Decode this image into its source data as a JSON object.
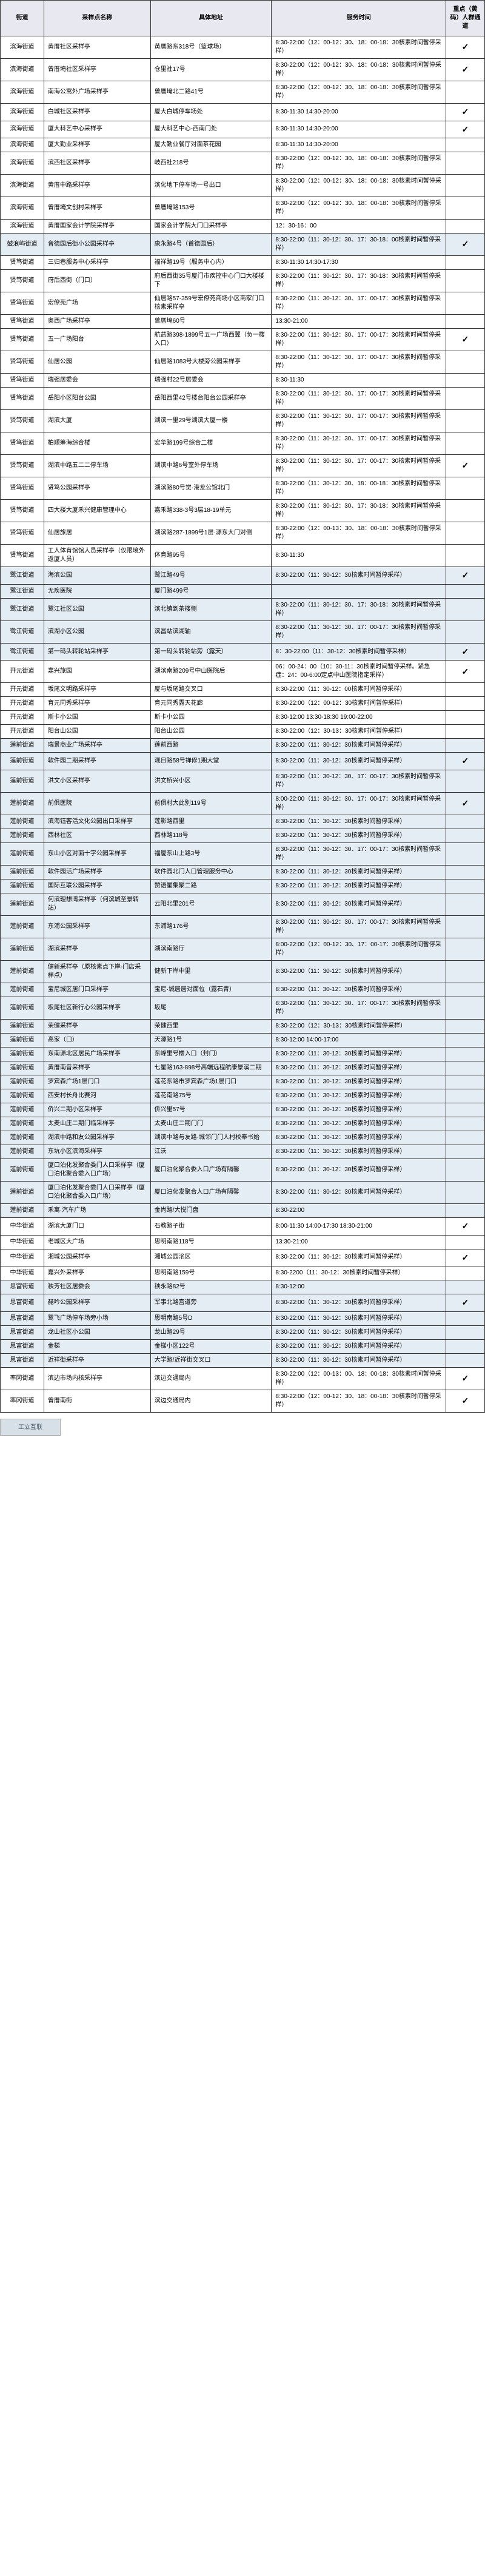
{
  "headers": [
    "街道",
    "采样点名称",
    "具体地址",
    "服务时间",
    "重点（黄码）人群通道"
  ],
  "footer_caption": "工立互联",
  "colors": {
    "header_bg": "#e8e8f0",
    "band_bg": "#e4ecf4",
    "border": "#333333",
    "text": "#000000"
  },
  "rows": [
    {
      "b": 0,
      "s": "滨海街道",
      "n": "黄厝社区采样亭",
      "a": "黄厝路东318号（篮球场）",
      "t": "8:30-22:00（12：00-12：30、18：00-18：30核素时间暂停采样）",
      "f": "✓"
    },
    {
      "b": 0,
      "s": "滨海街道",
      "n": "曾厝埯社区采样亭",
      "a": "仓里社17号",
      "t": "8:30-22:00（12：00-12：30、18：00-18：30核素时间暂停采样）",
      "f": "✓"
    },
    {
      "b": 0,
      "s": "滨海街道",
      "n": "南海公寓外广场采样亭",
      "a": "曾厝埯北二路41号",
      "t": "8:30-22:00（12：00-12：30、18：00-18：30核素时间暂停采样）",
      "f": ""
    },
    {
      "b": 0,
      "s": "滨海街道",
      "n": "白城社区采样亭",
      "a": "厦大白城停车场处",
      "t": "8:30-11:30 14:30-20:00",
      "f": "✓"
    },
    {
      "b": 0,
      "s": "滨海街道",
      "n": "厦大科艺中心采样亭",
      "a": "厦大科艺中心-西南门处",
      "t": "8:30-11:30 14:30-20:00",
      "f": "✓"
    },
    {
      "b": 0,
      "s": "滨海街道",
      "n": "厦大勤业采样亭",
      "a": "厦大勤业餐厅对面茶花园",
      "t": "8:30-11:30 14:30-20:00",
      "f": ""
    },
    {
      "b": 0,
      "s": "滨海街道",
      "n": "滨西社区采样亭",
      "a": "岐西社218号",
      "t": "8:30-22:00（12：00-12：30、18：00-18：30核素时间暂停采样）",
      "f": ""
    },
    {
      "b": 0,
      "s": "滨海街道",
      "n": "黄厝中路采样亭",
      "a": "滨化地下停车场一号出口",
      "t": "8:30-22:00（12：00-12：30、18：00-18：30核素时间暂停采样）",
      "f": ""
    },
    {
      "b": 0,
      "s": "滨海街道",
      "n": "曾厝埯文创村采样亭",
      "a": "曾厝埯路153号",
      "t": "8:30-22:00（12：00-12：30、18：00-18：30核素时间暂停采样）",
      "f": ""
    },
    {
      "b": 0,
      "s": "滨海街道",
      "n": "黄厝国家会计学院采样亭",
      "a": "国家会计学院大门口采样亭",
      "t": "12：30-16：00",
      "f": ""
    },
    {
      "b": 1,
      "s": "鼓浪屿街道",
      "n": "音德园后街小公园采样亭",
      "a": "康永路4号（首德园后）",
      "t": "8:30-22:00（11：30-12：30、17：30-18：00核素时间暂停采样）",
      "f": "✓"
    },
    {
      "b": 0,
      "s": "贤笃街道",
      "n": "三归巷服务中心采样亭",
      "a": "福祥路19号（服务中心内）",
      "t": "8:30-11:30 14:30-17:30",
      "f": ""
    },
    {
      "b": 0,
      "s": "贤笃街道",
      "n": "府后西街（门口）",
      "a": "府后西街35号厦门市疾控中心门口大楼楼下",
      "t": "8:30-22:00（11：30-12：30、17：30-18：30核素时间暂停采样）",
      "f": ""
    },
    {
      "b": 0,
      "s": "贤笃街道",
      "n": "宏僚苑广场",
      "a": "仙居路57-359号宏僚苑商场小区商家门口核素采样亭",
      "t": "8:30-22:00（11：30-12：30、17：00-17：30核素时间暂停采样）",
      "f": ""
    },
    {
      "b": 0,
      "s": "贤笃街道",
      "n": "奥西广场采样亭",
      "a": "曾厝埯60号",
      "t": "13:30-21:00",
      "f": ""
    },
    {
      "b": 0,
      "s": "贤笃街道",
      "n": "五一广场阳台",
      "a": "航益路398-1899号五一广场西翼（负一楼入口）",
      "t": "8:30-22:00（11：30-12：30、17：00-17：30核素时间暂停采样）",
      "f": "✓"
    },
    {
      "b": 0,
      "s": "贤笃街道",
      "n": "仙居公园",
      "a": "仙居路1083号大楼旁公园采样亭",
      "t": "8:30-22:00（11：30-12：30、17：00-17：30核素时间暂停采样）",
      "f": ""
    },
    {
      "b": 0,
      "s": "贤笃街道",
      "n": "瑞强居委会",
      "a": "瑞强村22号居委会",
      "t": "8:30-11:30",
      "f": ""
    },
    {
      "b": 0,
      "s": "贤笃街道",
      "n": "岳阳小区阳台公园",
      "a": "岳阳西里42号楼台阳台公园采样亭",
      "t": "8:30-22:00（11：30-12：30、17：00-17：30核素时间暂停采样）",
      "f": ""
    },
    {
      "b": 0,
      "s": "贤笃街道",
      "n": "湖滨大厦",
      "a": "湖滨一里29号湖滨大厦一楼",
      "t": "8:30-22:00（11：30-12：30、17：00-17：30核素时间暂停采样）",
      "f": ""
    },
    {
      "b": 0,
      "s": "贤笃街道",
      "n": "柏顺筹海综合楼",
      "a": "宏华路199号综合二楼",
      "t": "8:30-22:00（11：30-12：30、17：00-17：30核素时间暂停采样）",
      "f": ""
    },
    {
      "b": 0,
      "s": "贤笃街道",
      "n": "湖滨中路五二二停车场",
      "a": "湖滨中路6号室外停车场",
      "t": "8:30-22:00（11：30-12：30、17：00-17：30核素时间暂停采样）",
      "f": "✓"
    },
    {
      "b": 0,
      "s": "贤笃街道",
      "n": "贤笃公园采样亭",
      "a": "湖滨路80号觉·港龙公馆北门",
      "t": "8:30-22:00（11：30-12：30、18：00-18：30核素时间暂停采样）",
      "f": ""
    },
    {
      "b": 0,
      "s": "贤笃街道",
      "n": "四大楼大厦禾兴健康管理中心",
      "a": "嘉禾路338-3号3层18-19单元",
      "t": "8:30-22:00（11：30-12：30、17：30-18：30核素时间暂停采样）",
      "f": ""
    },
    {
      "b": 0,
      "s": "贤笃街道",
      "n": "仙居旅居",
      "a": "湖滨路287-1899号1层·源东大门对侧",
      "t": "8:30-22:00（12：00-13：30、18：00-18：30核素时间暂停采样）",
      "f": ""
    },
    {
      "b": 0,
      "s": "贤笃街道",
      "n": "工人体育馆馆人员采样亭（仅限境外返厦人员）",
      "a": "体育路95号",
      "t": "8:30-11:30",
      "f": ""
    },
    {
      "b": 1,
      "s": "鹭江街道",
      "n": "海滨公园",
      "a": "鹭江路49号",
      "t": "8:30-22:00（11：30-12：30核素时间暂停采样）",
      "f": "✓"
    },
    {
      "b": 1,
      "s": "鹭江街道",
      "n": "无疾医院",
      "a": "厦门路499号",
      "t": "",
      "f": ""
    },
    {
      "b": 1,
      "s": "鹭江街道",
      "n": "鹭江社区公园",
      "a": "滨北镇到茶楼侧",
      "t": "8:30-22:00（11：30-12：30、17：30-18：30核素时间暂停采样）",
      "f": ""
    },
    {
      "b": 1,
      "s": "鹭江街道",
      "n": "滨湖小区公园",
      "a": "滨昌站滨湖轴",
      "t": "8:30-22:00（11：30-12：30、17：00-17：30核素时间暂停采样）",
      "f": ""
    },
    {
      "b": 1,
      "s": "鹭江街道",
      "n": "第一码头转轮站采样亭",
      "a": "第一码头转轮站旁（露天）",
      "t": "8：30-22:00（11：30-12：30核素时间暂停采样）",
      "f": "✓"
    },
    {
      "b": 0,
      "s": "开元街道",
      "n": "嘉兴旅园",
      "a": "湖滨南路209号中山医院后",
      "t": "06：00-24：00（10：30-11：30核素时间暂停采样。紧急症：24：00-6:00定点中山医院指定采样）",
      "f": "✓"
    },
    {
      "b": 0,
      "s": "开元街道",
      "n": "坂尾文明路采样亭",
      "a": "厦与坂尾路交叉口",
      "t": "8:30-22:00（11：30-12：00核素时间暂停采样）",
      "f": ""
    },
    {
      "b": 0,
      "s": "开元街道",
      "n": "育元同秀采样亭",
      "a": "育元同秀露天花廊",
      "t": "8:30-22:00（12：00-12：30核素时间暂停采样）",
      "f": ""
    },
    {
      "b": 0,
      "s": "开元街道",
      "n": "斯卡小公园",
      "a": "斯卡小公园",
      "t": "8:30-12:00 13:30-18:30 19:00-22:00",
      "f": ""
    },
    {
      "b": 0,
      "s": "开元街道",
      "n": "阳台山公园",
      "a": "阳台山公园",
      "t": "8:30-22:00（12：30-13：30核素时间暂停采样）",
      "f": ""
    },
    {
      "b": 1,
      "s": "莲前街道",
      "n": "瑞景商业广场采样亭",
      "a": "莲前西路",
      "t": "8:30-22:00（11：30-12：30核素时间暂停采样）",
      "f": ""
    },
    {
      "b": 1,
      "s": "莲前街道",
      "n": "软件园二期采样亭",
      "a": "观日路58号禅修1期大堂",
      "t": "8:30-22:00（11：30-12：30核素时间暂停采样）",
      "f": "✓"
    },
    {
      "b": 1,
      "s": "莲前街道",
      "n": "洪文小区采样亭",
      "a": "洪文桥兴小区",
      "t": "8:30-22:00（11：30-12：30、17：00-17：30核素时间暂停采样）",
      "f": ""
    },
    {
      "b": 1,
      "s": "莲前街道",
      "n": "前俱医院",
      "a": "前俱村大此别119号",
      "t": "8:00-22:00（11：30-12：30、17：00-17：30核素时间暂停采样）",
      "f": "✓"
    },
    {
      "b": 1,
      "s": "莲前街道",
      "n": "滨海钰客活文化公园出口采样亭",
      "a": "莲影路西里",
      "t": "8:30-22:00（11：30-12：30核素时间暂停采样）",
      "f": ""
    },
    {
      "b": 1,
      "s": "莲前街道",
      "n": "西林社区",
      "a": "西林路118号",
      "t": "8:30-22:00（11：30-12：30核素时间暂停采样）",
      "f": ""
    },
    {
      "b": 1,
      "s": "莲前街道",
      "n": "东山小区对面十字公园采样亭",
      "a": "福厦东山上路3号",
      "t": "8:30-22:00（11：30-12：30、17：00-17：30核素时间暂停采样）",
      "f": ""
    },
    {
      "b": 1,
      "s": "莲前街道",
      "n": "软件园活广场采样亭",
      "a": "软件园北门人口管理服务中心",
      "t": "8:30-22:00（11：30-12：30核素时间暂停采样）",
      "f": ""
    },
    {
      "b": 1,
      "s": "莲前街道",
      "n": "国际互联公园采样亭",
      "a": "赞语星集聚二路",
      "t": "8:30-22:00（11：30-12：30核素时间暂停采样）",
      "f": ""
    },
    {
      "b": 1,
      "s": "莲前街道",
      "n": "何滨理想湾采样亭（何滨城至景转站）",
      "a": "云阳北里201号",
      "t": "8:30-22:00（11：30-12：30核素时间暂停采样）",
      "f": ""
    },
    {
      "b": 1,
      "s": "莲前街道",
      "n": "东浦公园采样亭",
      "a": "东浦路176号",
      "t": "8:30-22:00（11：30-12：30、17：00-17：30核素时间暂停采样）",
      "f": ""
    },
    {
      "b": 1,
      "s": "莲前街道",
      "n": "湖滨采样亭",
      "a": "湖滨南路厅",
      "t": "8:00-22:00（12：00-12：30、17：00-17：30核素时间暂停采样）",
      "f": ""
    },
    {
      "b": 1,
      "s": "莲前街道",
      "n": "健新采样亭（原核素点下岸-门店采样点）",
      "a": "健新下岸中里",
      "t": "8:30-22:00（11：30-12：30核素时间暂停采样）",
      "f": ""
    },
    {
      "b": 1,
      "s": "莲前街道",
      "n": "宝尼城区居门口采样亭",
      "a": "宝尼·城居居对面位（露石青）",
      "t": "8:30-22:00（11：30-12：30核素时间暂停采样）",
      "f": ""
    },
    {
      "b": 1,
      "s": "莲前街道",
      "n": "坂尾社区新行心公园采样亭",
      "a": "坂尾",
      "t": "8:30-22:00（11：30-12：30、17：00-17：30核素时间暂停采样）",
      "f": ""
    },
    {
      "b": 1,
      "s": "莲前街道",
      "n": "荣健采样亭",
      "a": "荣健西里",
      "t": "8:30-22:00（12：30-13：30核素时间暂停采样）",
      "f": ""
    },
    {
      "b": 1,
      "s": "莲前街道",
      "n": "高家（口）",
      "a": "天源路1号",
      "t": "8:30-12:00 14:00-17:00",
      "f": ""
    },
    {
      "b": 1,
      "s": "莲前街道",
      "n": "东南源北区居民广场采样亭",
      "a": "东峰里号楼入口（封门）",
      "t": "8:30-22:00（11：30-12：30核素时间暂停采样）",
      "f": ""
    },
    {
      "b": 1,
      "s": "莲前街道",
      "n": "黄厝南音采样亭",
      "a": "七星路163-898号高端远程航康景溪二期",
      "t": "8:30-22:00（11：30-12：30核素时间暂停采样）",
      "f": ""
    },
    {
      "b": 1,
      "s": "莲前街道",
      "n": "罗宾森广场1层门口",
      "a": "莲花东路市罗宾森广场1层门口",
      "t": "8:30-22:00（11：30-12：30核素时间暂停采样）",
      "f": ""
    },
    {
      "b": 1,
      "s": "莲前街道",
      "n": "西安村长舟比赛河",
      "a": "莲花南路75号",
      "t": "8:30-22:00（11：30-12：30核素时间暂停采样）",
      "f": ""
    },
    {
      "b": 1,
      "s": "莲前街道",
      "n": "侨兴二期小区采样亭",
      "a": "侨兴里57号",
      "t": "8:30-22:00（11：30-12：30核素时间暂停采样）",
      "f": ""
    },
    {
      "b": 1,
      "s": "莲前街道",
      "n": "太麦山庄二期门临采样亭",
      "a": "太麦山庄二期门门",
      "t": "8:30-22:00（11：30-12：30核素时间暂停采样）",
      "f": ""
    },
    {
      "b": 1,
      "s": "莲前街道",
      "n": "湖滨中路和友公园采样亭",
      "a": "湖滨中路与友路·城邻门门人村校奉书始",
      "t": "8:30-22:00（11：30-12：30核素时间暂停采样）",
      "f": ""
    },
    {
      "b": 1,
      "s": "莲前街道",
      "n": "东坑小区滨海采样亭",
      "a": "江沃",
      "t": "8:30-22:00（11：30-12：30核素时间暂停采样）",
      "f": ""
    },
    {
      "b": 1,
      "s": "莲前街道",
      "n": "厦口泊化发聚合委门人口采样亭（厦口泊化聚合委入口广场）",
      "a": "厦口泊化聚合委入口广场有隔馨",
      "t": "8:30-22:00（11：30-12：30核素时间暂停采样）",
      "f": ""
    },
    {
      "b": 1,
      "s": "莲前街道",
      "n": "厦口泊化发聚合委门人口采样亭（厦口泊化聚合委入口广场）",
      "a": "厦口泊化发聚合人口广场有隔馨",
      "t": "8:30-22:00（11：30-12：30核素时间暂停采样）",
      "f": ""
    },
    {
      "b": 1,
      "s": "莲前街道",
      "n": "禾寓·汽车广场",
      "a": "金尚路/大悦门盘",
      "t": "8:30-22:00",
      "f": ""
    },
    {
      "b": 0,
      "s": "中华街道",
      "n": "湖滨大厦门口",
      "a": "石教路子街",
      "t": "8:00-11:30 14:00-17:30 18:30-21:00",
      "f": "✓"
    },
    {
      "b": 0,
      "s": "中华街道",
      "n": "老城区大广场",
      "a": "思明南路118号",
      "t": "13:30-21:00",
      "f": ""
    },
    {
      "b": 0,
      "s": "中华街道",
      "n": "湘城公园采样亭",
      "a": "湘城公园洺区",
      "t": "8:30-22:00（11：30-12：30核素时间暂停采样）",
      "f": "✓"
    },
    {
      "b": 0,
      "s": "中华街道",
      "n": "嘉兴外采样亭",
      "a": "思明南路159号",
      "t": "8:30-2200（11：30-12：30核素时间暂停采样）",
      "f": ""
    },
    {
      "b": 1,
      "s": "思富街道",
      "n": "秧芳社区居委会",
      "a": "秧永路82号",
      "t": "8:30-12:00",
      "f": ""
    },
    {
      "b": 1,
      "s": "思富街道",
      "n": "琵吟公园采样亭",
      "a": "军事北路宫道旁",
      "t": "8:30-22:00（11：30-12：30核素时间暂停采样）",
      "f": "✓"
    },
    {
      "b": 1,
      "s": "思富街道",
      "n": "鹭飞广场停车场旁小场",
      "a": "思明南路5号D",
      "t": "8:30-22:00（11：30-12：30核素时间暂停采样）",
      "f": ""
    },
    {
      "b": 1,
      "s": "思富街道",
      "n": "龙山社区小公园",
      "a": "龙山路29号",
      "t": "8:30-22:00（11：30-12：30核素时间暂停采样）",
      "f": ""
    },
    {
      "b": 1,
      "s": "思富街道",
      "n": "金梯",
      "a": "金梯小区122号",
      "t": "8:30-22:00（11：30-12：30核素时间暂停采样）",
      "f": ""
    },
    {
      "b": 1,
      "s": "思富街道",
      "n": "近祥街采样亭",
      "a": "大学路/近祥街交叉口",
      "t": "8:30-22:00（11：30-12：30核素时间暂停采样）",
      "f": ""
    },
    {
      "b": 0,
      "s": "率冈街道",
      "n": "滨边市场内核采样亭",
      "a": "滨边交通局内",
      "t": "8:30-22:00（12：00-13：00、18：00-18：30核素时间暂停采样）",
      "f": "✓"
    },
    {
      "b": 0,
      "s": "率冈街道",
      "n": "曾厝南街",
      "a": "滨边交通局内",
      "t": "8:30-22:00（12：00-12：30、18：00-18：30核素时间暂停采样）",
      "f": "✓"
    }
  ]
}
